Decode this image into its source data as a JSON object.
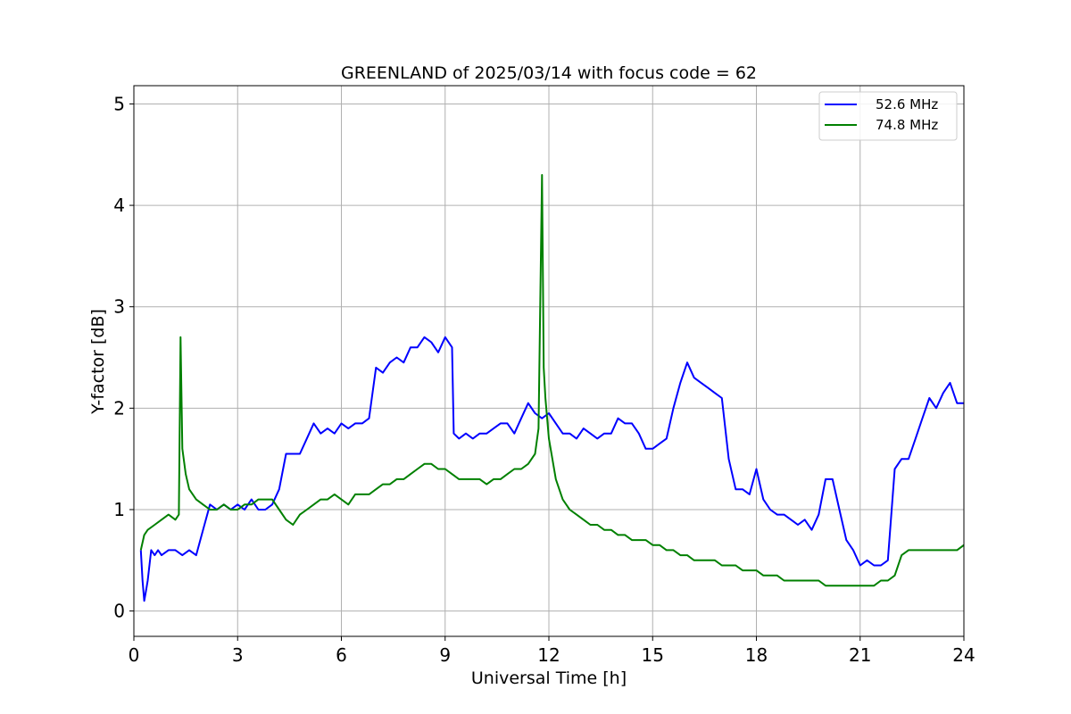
{
  "chart_data": {
    "type": "line",
    "title": "GREENLAND of 2025/03/14 with focus code = 62",
    "xlabel": "Universal Time [h]",
    "ylabel": "Y-factor [dB]",
    "xlim": [
      0,
      24
    ],
    "ylim": [
      -0.25,
      5.18
    ],
    "xticks": [
      0,
      3,
      6,
      9,
      12,
      15,
      18,
      21,
      24
    ],
    "yticks": [
      0,
      1,
      2,
      3,
      4,
      5
    ],
    "grid": true,
    "legend_position": "top-right",
    "series": [
      {
        "name": "52.6 MHz",
        "color": "#0000ff",
        "x": [
          0.2,
          0.25,
          0.3,
          0.35,
          0.4,
          0.5,
          0.6,
          0.7,
          0.8,
          1.0,
          1.2,
          1.4,
          1.6,
          1.8,
          2.0,
          2.2,
          2.4,
          2.6,
          2.8,
          3.0,
          3.2,
          3.4,
          3.6,
          3.8,
          4.0,
          4.2,
          4.4,
          4.6,
          4.8,
          5.0,
          5.2,
          5.4,
          5.6,
          5.8,
          6.0,
          6.2,
          6.4,
          6.6,
          6.8,
          7.0,
          7.2,
          7.4,
          7.6,
          7.8,
          8.0,
          8.2,
          8.4,
          8.6,
          8.8,
          9.0,
          9.2,
          9.25,
          9.4,
          9.6,
          9.8,
          10.0,
          10.2,
          10.4,
          10.6,
          10.8,
          11.0,
          11.2,
          11.4,
          11.6,
          11.8,
          12.0,
          12.2,
          12.4,
          12.6,
          12.8,
          13.0,
          13.2,
          13.4,
          13.6,
          13.8,
          14.0,
          14.2,
          14.4,
          14.6,
          14.8,
          15.0,
          15.2,
          15.4,
          15.6,
          15.8,
          16.0,
          16.2,
          16.4,
          16.6,
          16.8,
          17.0,
          17.2,
          17.4,
          17.6,
          17.8,
          18.0,
          18.2,
          18.4,
          18.6,
          18.8,
          19.0,
          19.2,
          19.4,
          19.6,
          19.8,
          20.0,
          20.2,
          20.4,
          20.6,
          20.8,
          21.0,
          21.2,
          21.4,
          21.6,
          21.8,
          22.0,
          22.2,
          22.4,
          22.6,
          22.8,
          23.0,
          23.2,
          23.4,
          23.6,
          23.8,
          24.0
        ],
        "y": [
          0.6,
          0.3,
          0.1,
          0.2,
          0.3,
          0.6,
          0.55,
          0.6,
          0.55,
          0.6,
          0.6,
          0.55,
          0.6,
          0.55,
          0.8,
          1.05,
          1.0,
          1.05,
          1.0,
          1.05,
          1.0,
          1.1,
          1.0,
          1.0,
          1.05,
          1.2,
          1.55,
          1.55,
          1.55,
          1.7,
          1.85,
          1.75,
          1.8,
          1.75,
          1.85,
          1.8,
          1.85,
          1.85,
          1.9,
          2.4,
          2.35,
          2.45,
          2.5,
          2.45,
          2.6,
          2.6,
          2.7,
          2.65,
          2.55,
          2.7,
          2.6,
          1.75,
          1.7,
          1.75,
          1.7,
          1.75,
          1.75,
          1.8,
          1.85,
          1.85,
          1.75,
          1.9,
          2.05,
          1.95,
          1.9,
          1.95,
          1.85,
          1.75,
          1.75,
          1.7,
          1.8,
          1.75,
          1.7,
          1.75,
          1.75,
          1.9,
          1.85,
          1.85,
          1.75,
          1.6,
          1.6,
          1.65,
          1.7,
          2.0,
          2.25,
          2.45,
          2.3,
          2.25,
          2.2,
          2.15,
          2.1,
          1.5,
          1.2,
          1.2,
          1.15,
          1.4,
          1.1,
          1.0,
          0.95,
          0.95,
          0.9,
          0.85,
          0.9,
          0.8,
          0.95,
          1.3,
          1.3,
          1.0,
          0.7,
          0.6,
          0.45,
          0.5,
          0.45,
          0.45,
          0.5,
          1.4,
          1.5,
          1.5,
          1.7,
          1.9,
          2.1,
          2.0,
          2.15,
          2.25,
          2.05,
          2.05
        ]
      },
      {
        "name": "74.8 MHz",
        "color": "#008000",
        "x": [
          0.2,
          0.3,
          0.4,
          0.6,
          0.8,
          1.0,
          1.2,
          1.3,
          1.35,
          1.4,
          1.5,
          1.6,
          1.8,
          2.0,
          2.2,
          2.4,
          2.6,
          2.8,
          3.0,
          3.2,
          3.4,
          3.6,
          3.8,
          4.0,
          4.2,
          4.4,
          4.6,
          4.8,
          5.0,
          5.2,
          5.4,
          5.6,
          5.8,
          6.0,
          6.2,
          6.4,
          6.6,
          6.8,
          7.0,
          7.2,
          7.4,
          7.6,
          7.8,
          8.0,
          8.2,
          8.4,
          8.6,
          8.8,
          9.0,
          9.2,
          9.4,
          9.6,
          9.8,
          10.0,
          10.2,
          10.4,
          10.6,
          10.8,
          11.0,
          11.2,
          11.4,
          11.6,
          11.7,
          11.8,
          11.85,
          11.9,
          12.0,
          12.2,
          12.4,
          12.6,
          12.8,
          13.0,
          13.2,
          13.4,
          13.6,
          13.8,
          14.0,
          14.2,
          14.4,
          14.6,
          14.8,
          15.0,
          15.2,
          15.4,
          15.6,
          15.8,
          16.0,
          16.2,
          16.4,
          16.6,
          16.8,
          17.0,
          17.2,
          17.4,
          17.6,
          17.8,
          18.0,
          18.2,
          18.4,
          18.6,
          18.8,
          19.0,
          19.2,
          19.4,
          19.6,
          19.8,
          20.0,
          20.2,
          20.4,
          20.6,
          20.8,
          21.0,
          21.2,
          21.4,
          21.6,
          21.8,
          22.0,
          22.2,
          22.4,
          22.6,
          22.8,
          23.0,
          23.2,
          23.4,
          23.6,
          23.8,
          24.0
        ],
        "y": [
          0.6,
          0.75,
          0.8,
          0.85,
          0.9,
          0.95,
          0.9,
          0.95,
          2.7,
          1.6,
          1.35,
          1.2,
          1.1,
          1.05,
          1.0,
          1.0,
          1.05,
          1.0,
          1.0,
          1.05,
          1.05,
          1.1,
          1.1,
          1.1,
          1.0,
          0.9,
          0.85,
          0.95,
          1.0,
          1.05,
          1.1,
          1.1,
          1.15,
          1.1,
          1.05,
          1.15,
          1.15,
          1.15,
          1.2,
          1.25,
          1.25,
          1.3,
          1.3,
          1.35,
          1.4,
          1.45,
          1.45,
          1.4,
          1.4,
          1.35,
          1.3,
          1.3,
          1.3,
          1.3,
          1.25,
          1.3,
          1.3,
          1.35,
          1.4,
          1.4,
          1.45,
          1.55,
          1.8,
          4.3,
          2.4,
          2.1,
          1.7,
          1.3,
          1.1,
          1.0,
          0.95,
          0.9,
          0.85,
          0.85,
          0.8,
          0.8,
          0.75,
          0.75,
          0.7,
          0.7,
          0.7,
          0.65,
          0.65,
          0.6,
          0.6,
          0.55,
          0.55,
          0.5,
          0.5,
          0.5,
          0.5,
          0.45,
          0.45,
          0.45,
          0.4,
          0.4,
          0.4,
          0.35,
          0.35,
          0.35,
          0.3,
          0.3,
          0.3,
          0.3,
          0.3,
          0.3,
          0.25,
          0.25,
          0.25,
          0.25,
          0.25,
          0.25,
          0.25,
          0.25,
          0.3,
          0.3,
          0.35,
          0.55,
          0.6,
          0.6,
          0.6,
          0.6,
          0.6,
          0.6,
          0.6,
          0.6,
          0.65
        ]
      }
    ]
  }
}
